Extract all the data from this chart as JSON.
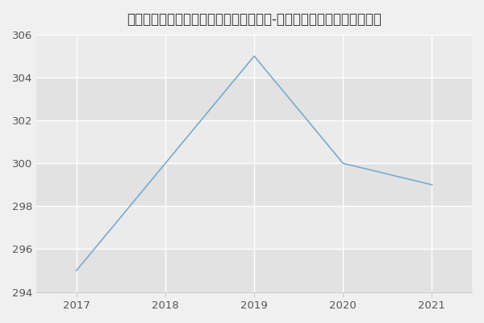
{
  "title": "南通大学医学院、药学院耳鼻咽喉科学（-历年复试）研究生录取分数线",
  "x": [
    2017,
    2018,
    2019,
    2020,
    2021
  ],
  "y": [
    295,
    300,
    305,
    300,
    299
  ],
  "line_color": "#7aabcf",
  "background_color": "#f0f0f0",
  "plot_bg_color": "#ebebeb",
  "band_color_dark": "#e2e2e2",
  "band_color_light": "#ebebeb",
  "grid_color": "#ffffff",
  "ylim": [
    294,
    306
  ],
  "xlim": [
    2016.55,
    2021.45
  ],
  "yticks": [
    294,
    296,
    298,
    300,
    302,
    304,
    306
  ],
  "xticks": [
    2017,
    2018,
    2019,
    2020,
    2021
  ],
  "title_fontsize": 12,
  "tick_fontsize": 9.5,
  "tick_color": "#555555"
}
